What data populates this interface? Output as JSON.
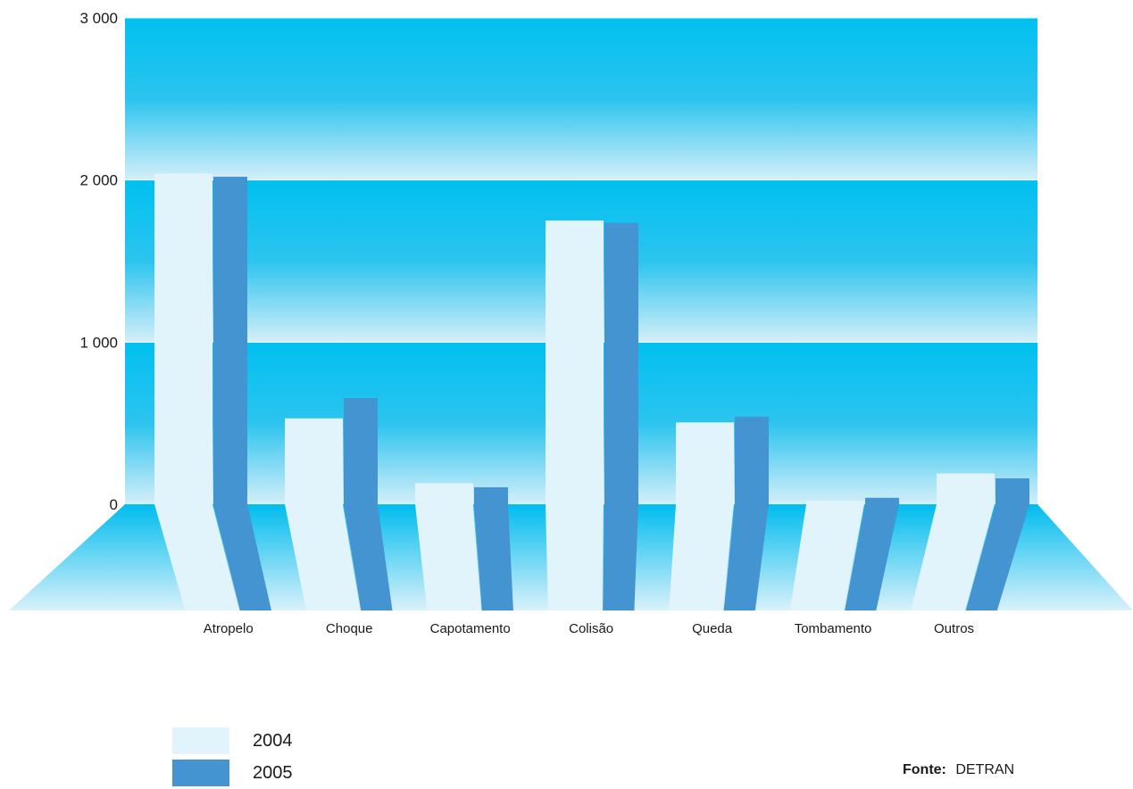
{
  "chart_data": {
    "type": "bar",
    "categories": [
      "Atropelo",
      "Choque",
      "Capotamento",
      "Colisão",
      "Queda",
      "Tombamento",
      "Outros"
    ],
    "series": [
      {
        "name": "2004",
        "values": [
          2040,
          530,
          130,
          1750,
          505,
          20,
          190
        ],
        "color": "#e1f3fb"
      },
      {
        "name": "2005",
        "values": [
          2020,
          655,
          105,
          1735,
          540,
          40,
          160
        ],
        "color": "#4394d0"
      }
    ],
    "yticks": [
      "3 000",
      "2 000",
      "1 000",
      "0"
    ],
    "ylim": [
      0,
      3000
    ],
    "grid": true,
    "legend_position": "bottom-left",
    "background_colors": {
      "band": "#00c0ef",
      "light": "#d8f0fa"
    }
  },
  "source": {
    "label": "Fonte:",
    "value": "DETRAN"
  }
}
